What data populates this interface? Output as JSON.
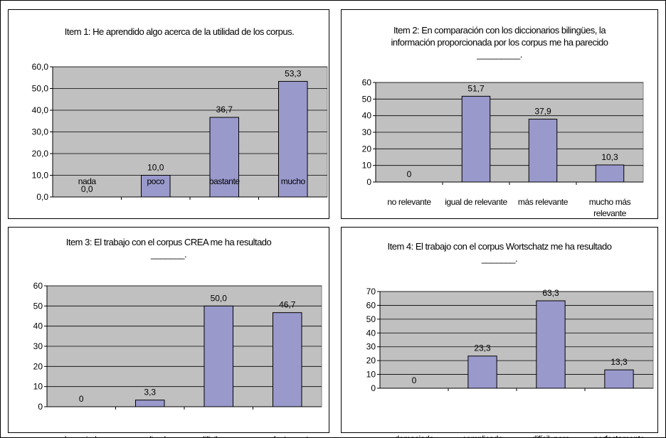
{
  "chart_data": [
    {
      "type": "bar",
      "title": "Item 1: He aprendido algo acerca de la utilidad de los corpus.",
      "categories": [
        "nada",
        "poco",
        "bastante",
        "mucho"
      ],
      "values": [
        0.0,
        10.0,
        36.7,
        53.3
      ],
      "value_labels": [
        "0,0",
        "10,0",
        "36,7",
        "53,3"
      ],
      "ylim": [
        0,
        60
      ],
      "yticks": [
        "0,0",
        "10,0",
        "20,0",
        "30,0",
        "40,0",
        "50,0",
        "60,0"
      ],
      "ytick_values": [
        0,
        10,
        20,
        30,
        40,
        50,
        60
      ],
      "grid": true
    },
    {
      "type": "bar",
      "title": "Item 2: En comparación con los diccionarios bilingües, la información proporcionada por los corpus me ha parecido _________.",
      "categories": [
        "no relevante",
        "igual de relevante",
        "más relevante",
        "mucho más relevante"
      ],
      "values": [
        0,
        51.7,
        37.9,
        10.3
      ],
      "value_labels": [
        "0",
        "51,7",
        "37,9",
        "10,3"
      ],
      "ylim": [
        0,
        60
      ],
      "yticks": [
        "0",
        "10",
        "20",
        "30",
        "40",
        "50",
        "60"
      ],
      "ytick_values": [
        0,
        10,
        20,
        30,
        40,
        50,
        60
      ],
      "grid": true
    },
    {
      "type": "bar",
      "title": "Item 3: El trabajo con el corpus CREA me ha resultado _______.",
      "categories": [
        "demasiado complicado",
        "complicado",
        "difícil, pero factible",
        "perfectamente factible"
      ],
      "values": [
        0,
        3.3,
        50.0,
        46.7
      ],
      "value_labels": [
        "0",
        "3,3",
        "50,0",
        "46,7"
      ],
      "ylim": [
        0,
        60
      ],
      "yticks": [
        "0",
        "10",
        "20",
        "30",
        "40",
        "50",
        "60"
      ],
      "ytick_values": [
        0,
        10,
        20,
        30,
        40,
        50,
        60
      ],
      "grid": true
    },
    {
      "type": "bar",
      "title": "Item 4: El trabajo con el corpus Wortschatz me ha resultado _______.",
      "categories": [
        "demasiado complicado",
        "complicado",
        "difícil, pero factible",
        "perfectamente factible"
      ],
      "values": [
        0,
        23.3,
        63.3,
        13.3
      ],
      "value_labels": [
        "0",
        "23,3",
        "63,3",
        "13,3"
      ],
      "ylim": [
        0,
        70
      ],
      "yticks": [
        "0",
        "10",
        "20",
        "30",
        "40",
        "50",
        "60",
        "70"
      ],
      "ytick_values": [
        0,
        10,
        20,
        30,
        40,
        50,
        60,
        70
      ],
      "grid": true
    }
  ],
  "colors": {
    "plot_area": "#c0c0c0",
    "bar_fill": "#9999cc",
    "bar_stroke": "#000000",
    "gridline": "#000000"
  }
}
